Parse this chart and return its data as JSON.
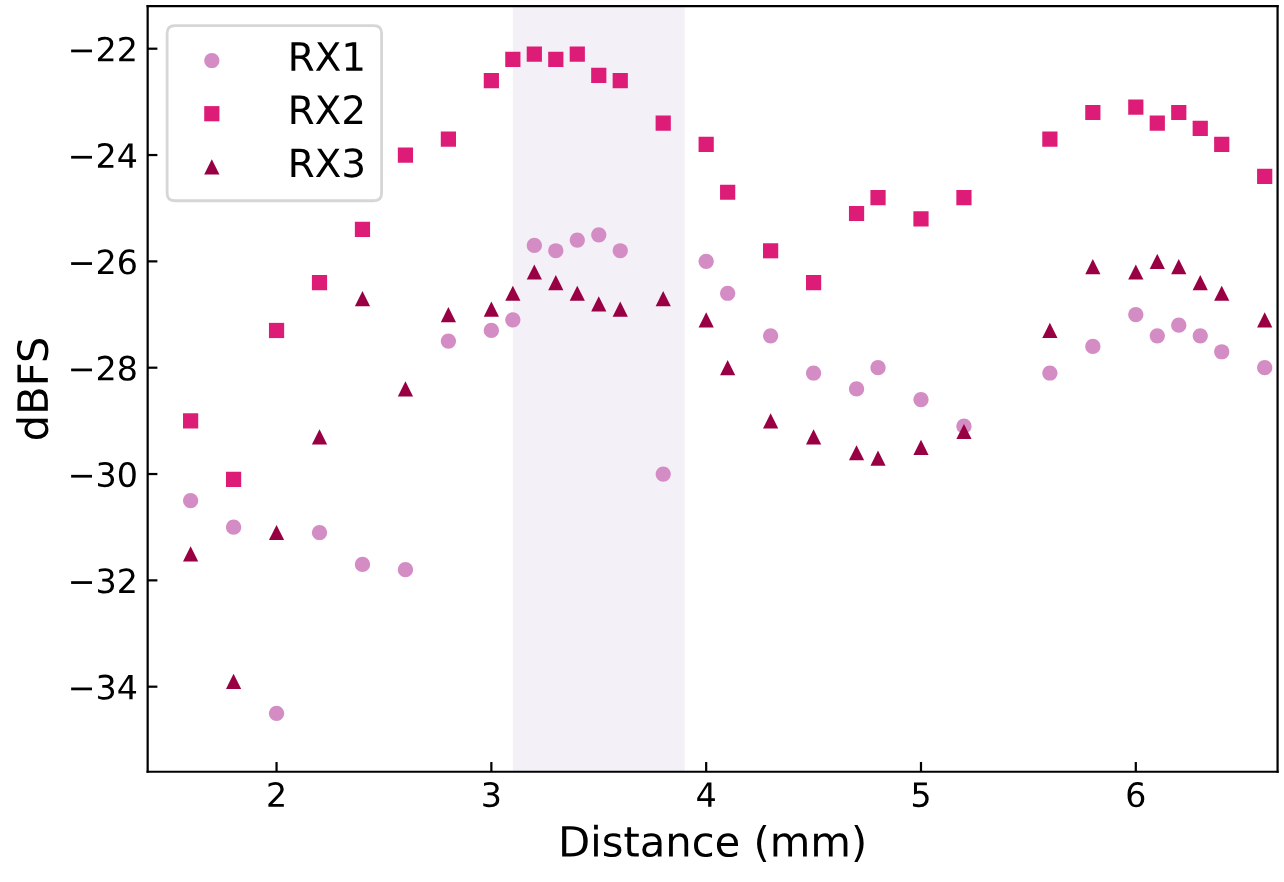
{
  "chart_data": {
    "type": "scatter",
    "xlabel": "Distance (mm)",
    "ylabel": "dBFS",
    "x": [
      1.6,
      1.8,
      2.0,
      2.2,
      2.4,
      2.6,
      2.8,
      3.0,
      3.1,
      3.2,
      3.3,
      3.4,
      3.5,
      3.6,
      3.8,
      4.0,
      4.1,
      4.3,
      4.5,
      4.7,
      4.8,
      5.0,
      5.2,
      5.6,
      5.8,
      6.0,
      6.1,
      6.2,
      6.3,
      6.4,
      6.6
    ],
    "series": [
      {
        "name": "RX1",
        "color": "#d48cc4",
        "marker": "circle",
        "values": [
          -30.5,
          -31.0,
          -34.5,
          -31.1,
          -31.7,
          -31.8,
          -27.5,
          -27.3,
          -27.1,
          -25.7,
          -25.8,
          -25.6,
          -25.5,
          -25.8,
          -30.0,
          -26.0,
          -26.6,
          -27.4,
          -28.1,
          -28.4,
          -28.0,
          -28.6,
          -29.1,
          -28.1,
          -27.6,
          -27.0,
          -27.4,
          -27.2,
          -27.4,
          -27.7,
          -28.0
        ]
      },
      {
        "name": "RX2",
        "color": "#dd1c77",
        "marker": "square",
        "values": [
          -29.0,
          -30.1,
          -27.3,
          -26.4,
          -25.4,
          -24.0,
          -23.7,
          -22.6,
          -22.2,
          -22.1,
          -22.2,
          -22.1,
          -22.5,
          -22.6,
          -23.4,
          -23.8,
          -24.7,
          -25.8,
          -26.4,
          -25.1,
          -24.8,
          -25.2,
          -24.8,
          -23.7,
          -23.2,
          -23.1,
          -23.4,
          -23.2,
          -23.5,
          -23.8,
          -24.4
        ]
      },
      {
        "name": "RX3",
        "color": "#980043",
        "marker": "triangle",
        "values": [
          -31.5,
          -33.9,
          -31.1,
          -29.3,
          -26.7,
          -28.4,
          -27.0,
          -26.9,
          -26.6,
          -26.2,
          -26.4,
          -26.6,
          -26.8,
          -26.9,
          -26.7,
          -27.1,
          -28.0,
          -29.0,
          -29.3,
          -29.6,
          -29.7,
          -29.5,
          -29.2,
          -27.3,
          -26.1,
          -26.2,
          -26.0,
          -26.1,
          -26.4,
          -26.6,
          -27.1
        ]
      }
    ],
    "bands": [
      {
        "axis": "x",
        "from": 3.1,
        "to": 3.9,
        "color": "#f4f0f8"
      }
    ],
    "xlim": [
      1.4,
      6.66
    ],
    "ylim": [
      -35.6,
      -21.2
    ],
    "xticks": [
      2,
      3,
      4,
      5,
      6
    ],
    "yticks": [
      {
        "value": -34,
        "label": "−34"
      },
      {
        "value": -32,
        "label": "−32"
      },
      {
        "value": -30,
        "label": "−30"
      },
      {
        "value": -28,
        "label": "−28"
      },
      {
        "value": -26,
        "label": "−26"
      },
      {
        "value": -24,
        "label": "−24"
      },
      {
        "value": -22,
        "label": "−22"
      }
    ],
    "grid": false,
    "legend": "top left"
  }
}
